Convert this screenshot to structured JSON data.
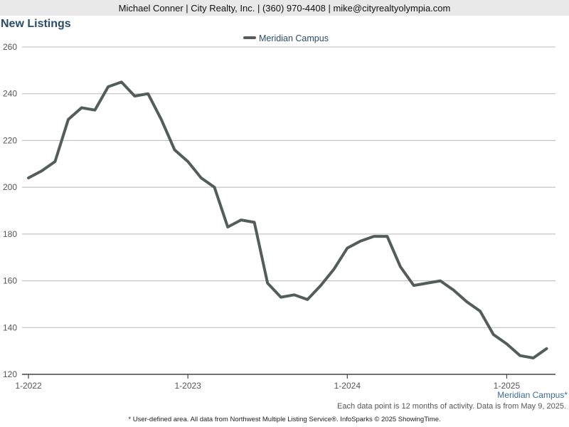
{
  "header": {
    "contact": "Michael Conner | City Realty, Inc. | (360) 970-4408 | mike@cityrealtyolympia.com"
  },
  "page_title": "New Listings",
  "area_note": "Meridian Campus*",
  "footer": {
    "note1": "Each data point is 12 months of activity. Data is from May 9, 2025.",
    "note2": "* User-defined area. All data from Northwest Multiple Listing Service®. InfoSparks © 2025 ShowingTime."
  },
  "colors": {
    "series": "#535d5b",
    "grid": "#b8b8b8",
    "axis": "#555555",
    "title": "#2b4b6b"
  },
  "chart_data": {
    "type": "line",
    "title": "New Listings",
    "xlabel": "",
    "ylabel": "",
    "legend_position": "top-center",
    "grid": true,
    "ylim": [
      120,
      260
    ],
    "yticks": [
      120,
      140,
      160,
      180,
      200,
      220,
      240,
      260
    ],
    "xtick_labels": [
      "1-2022",
      "1-2023",
      "1-2024",
      "1-2025"
    ],
    "x": [
      "1-2022",
      "2-2022",
      "3-2022",
      "4-2022",
      "5-2022",
      "6-2022",
      "7-2022",
      "8-2022",
      "9-2022",
      "10-2022",
      "11-2022",
      "12-2022",
      "1-2023",
      "2-2023",
      "3-2023",
      "4-2023",
      "5-2023",
      "6-2023",
      "7-2023",
      "8-2023",
      "9-2023",
      "10-2023",
      "11-2023",
      "12-2023",
      "1-2024",
      "2-2024",
      "3-2024",
      "4-2024",
      "5-2024",
      "6-2024",
      "7-2024",
      "8-2024",
      "9-2024",
      "10-2024",
      "11-2024",
      "12-2024",
      "1-2025",
      "2-2025",
      "3-2025",
      "4-2025"
    ],
    "series": [
      {
        "name": "Meridian Campus",
        "values": [
          204,
          207,
          211,
          229,
          234,
          233,
          243,
          245,
          239,
          240,
          229,
          216,
          211,
          204,
          200,
          183,
          186,
          185,
          159,
          153,
          154,
          152,
          158,
          165,
          174,
          177,
          179,
          179,
          166,
          158,
          159,
          160,
          156,
          151,
          147,
          137,
          133,
          128,
          127,
          131
        ]
      }
    ]
  }
}
